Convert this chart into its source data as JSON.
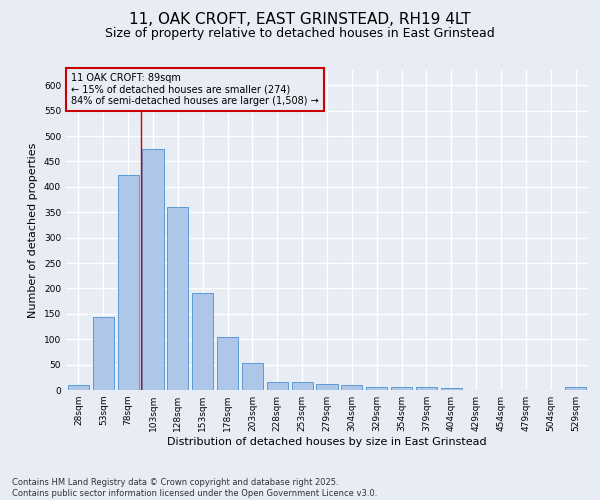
{
  "title_line1": "11, OAK CROFT, EAST GRINSTEAD, RH19 4LT",
  "title_line2": "Size of property relative to detached houses in East Grinstead",
  "xlabel": "Distribution of detached houses by size in East Grinstead",
  "ylabel": "Number of detached properties",
  "categories": [
    "28sqm",
    "53sqm",
    "78sqm",
    "103sqm",
    "128sqm",
    "153sqm",
    "178sqm",
    "203sqm",
    "228sqm",
    "253sqm",
    "279sqm",
    "304sqm",
    "329sqm",
    "354sqm",
    "379sqm",
    "404sqm",
    "429sqm",
    "454sqm",
    "479sqm",
    "504sqm",
    "529sqm"
  ],
  "values": [
    10,
    143,
    423,
    475,
    360,
    190,
    104,
    54,
    16,
    15,
    12,
    9,
    5,
    5,
    5,
    3,
    0,
    0,
    0,
    0,
    5
  ],
  "bar_color": "#aec6e8",
  "bar_edge_color": "#5b9bd5",
  "bg_color": "#e8edf5",
  "grid_color": "#ffffff",
  "vline_color": "#cc0000",
  "annotation_text": "11 OAK CROFT: 89sqm\n← 15% of detached houses are smaller (274)\n84% of semi-detached houses are larger (1,508) →",
  "annotation_box_color": "#cc0000",
  "ylim": [
    0,
    630
  ],
  "yticks": [
    0,
    50,
    100,
    150,
    200,
    250,
    300,
    350,
    400,
    450,
    500,
    550,
    600
  ],
  "footnote": "Contains HM Land Registry data © Crown copyright and database right 2025.\nContains public sector information licensed under the Open Government Licence v3.0.",
  "title_fontsize": 11,
  "subtitle_fontsize": 9,
  "label_fontsize": 8,
  "tick_fontsize": 6.5,
  "footnote_fontsize": 6
}
